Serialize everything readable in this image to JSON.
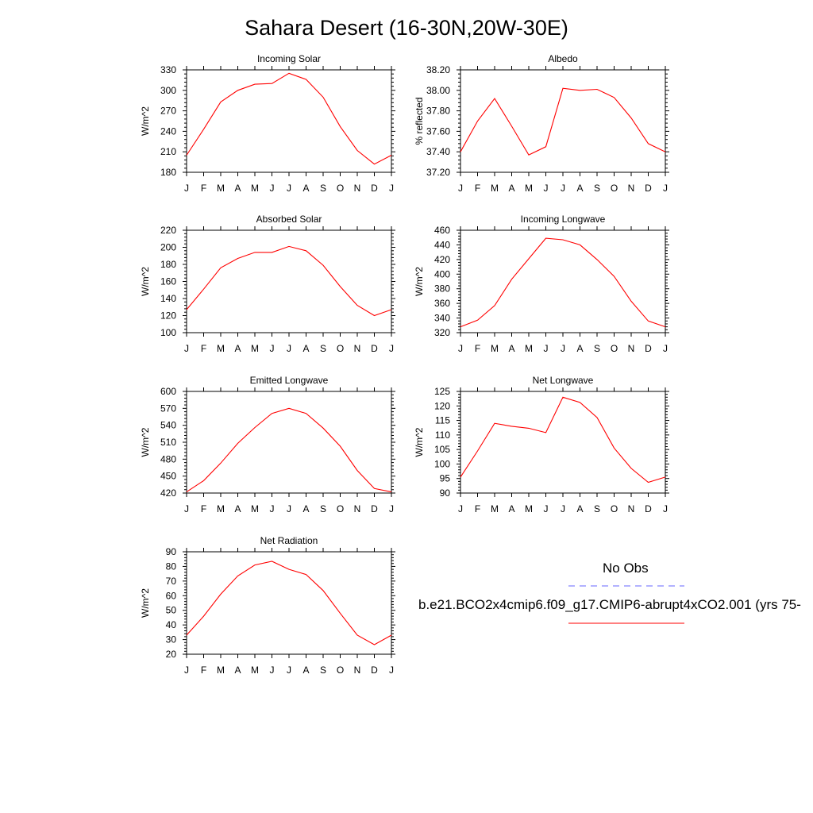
{
  "title": "Sahara Desert (16-30N,20W-30E)",
  "colors": {
    "model_line": "#ff0000",
    "obs_line": "#6464ff",
    "axis": "#000000"
  },
  "legend": {
    "obs_label": "No Obs",
    "model_label": "b.e21.BCO2x4cmip6.f09_g17.CMIP6-abrupt4xCO2.001 (yrs 75-"
  },
  "chart_data": [
    {
      "type": "line",
      "title": "Incoming Solar",
      "ylabel": "W/m^2",
      "ylim": [
        180,
        330
      ],
      "yticks": [
        180,
        210,
        240,
        270,
        300,
        330
      ],
      "ytick_labels": [
        "180",
        "210",
        "240",
        "270",
        "300",
        "330"
      ],
      "categories": [
        "J",
        "F",
        "M",
        "A",
        "M",
        "J",
        "J",
        "A",
        "S",
        "O",
        "N",
        "D",
        "J"
      ],
      "series": [
        {
          "values": [
            205,
            243,
            283,
            300,
            309,
            310,
            325,
            316,
            290,
            247,
            212,
            192,
            205
          ]
        }
      ]
    },
    {
      "type": "line",
      "title": "Albedo",
      "ylabel": "% reflected",
      "ylim": [
        37.2,
        38.2
      ],
      "yticks": [
        37.2,
        37.4,
        37.6,
        37.8,
        38.0,
        38.2
      ],
      "ytick_labels": [
        "37.20",
        "37.40",
        "37.60",
        "37.80",
        "38.00",
        "38.20"
      ],
      "categories": [
        "J",
        "F",
        "M",
        "A",
        "M",
        "J",
        "J",
        "A",
        "S",
        "O",
        "N",
        "D",
        "J"
      ],
      "series": [
        {
          "values": [
            37.4,
            37.7,
            37.92,
            37.65,
            37.37,
            37.45,
            38.02,
            38.0,
            38.01,
            37.93,
            37.73,
            37.48,
            37.4
          ]
        }
      ]
    },
    {
      "type": "line",
      "title": "Absorbed Solar",
      "ylabel": "W/m^2",
      "ylim": [
        100,
        220
      ],
      "yticks": [
        100,
        120,
        140,
        160,
        180,
        200,
        220
      ],
      "ytick_labels": [
        "100",
        "120",
        "140",
        "160",
        "180",
        "200",
        "220"
      ],
      "categories": [
        "J",
        "F",
        "M",
        "A",
        "M",
        "J",
        "J",
        "A",
        "S",
        "O",
        "N",
        "D",
        "J"
      ],
      "series": [
        {
          "values": [
            127,
            151,
            176,
            187,
            194,
            194,
            201,
            196,
            179,
            154,
            132,
            120,
            127
          ]
        }
      ]
    },
    {
      "type": "line",
      "title": "Incoming Longwave",
      "ylabel": "W/m^2",
      "ylim": [
        320,
        460
      ],
      "yticks": [
        320,
        340,
        360,
        380,
        400,
        420,
        440,
        460
      ],
      "ytick_labels": [
        "320",
        "340",
        "360",
        "380",
        "400",
        "420",
        "440",
        "460"
      ],
      "categories": [
        "J",
        "F",
        "M",
        "A",
        "M",
        "J",
        "J",
        "A",
        "S",
        "O",
        "N",
        "D",
        "J"
      ],
      "series": [
        {
          "values": [
            328,
            337,
            357,
            393,
            421,
            449,
            447,
            440,
            420,
            397,
            363,
            336,
            328
          ]
        }
      ]
    },
    {
      "type": "line",
      "title": "Emitted Longwave",
      "ylabel": "W/m^2",
      "ylim": [
        420,
        600
      ],
      "yticks": [
        420,
        450,
        480,
        510,
        540,
        570,
        600
      ],
      "ytick_labels": [
        "420",
        "450",
        "480",
        "510",
        "540",
        "570",
        "600"
      ],
      "categories": [
        "J",
        "F",
        "M",
        "A",
        "M",
        "J",
        "J",
        "A",
        "S",
        "O",
        "N",
        "D",
        "J"
      ],
      "series": [
        {
          "values": [
            422,
            442,
            473,
            508,
            536,
            561,
            570,
            561,
            535,
            503,
            460,
            428,
            422
          ]
        }
      ]
    },
    {
      "type": "line",
      "title": "Net Longwave",
      "ylabel": "W/m^2",
      "ylim": [
        90,
        125
      ],
      "yticks": [
        90,
        95,
        100,
        105,
        110,
        115,
        120,
        125
      ],
      "ytick_labels": [
        "90",
        "95",
        "100",
        "105",
        "110",
        "115",
        "120",
        "125"
      ],
      "categories": [
        "J",
        "F",
        "M",
        "A",
        "M",
        "J",
        "J",
        "A",
        "S",
        "O",
        "N",
        "D",
        "J"
      ],
      "series": [
        {
          "values": [
            95.5,
            104.5,
            114,
            113,
            112.3,
            110.8,
            123,
            121.2,
            116,
            105.5,
            98.5,
            93.7,
            95.5
          ]
        }
      ]
    },
    {
      "type": "line",
      "title": "Net Radiation",
      "ylabel": "W/m^2",
      "ylim": [
        20,
        90
      ],
      "yticks": [
        20,
        30,
        40,
        50,
        60,
        70,
        80,
        90
      ],
      "ytick_labels": [
        "20",
        "30",
        "40",
        "50",
        "60",
        "70",
        "80",
        "90"
      ],
      "categories": [
        "J",
        "F",
        "M",
        "A",
        "M",
        "J",
        "J",
        "A",
        "S",
        "O",
        "N",
        "D",
        "J"
      ],
      "series": [
        {
          "values": [
            33,
            46,
            61,
            73.5,
            81,
            83.5,
            78,
            74.5,
            63.5,
            48,
            33,
            26.5,
            33
          ]
        }
      ]
    }
  ]
}
